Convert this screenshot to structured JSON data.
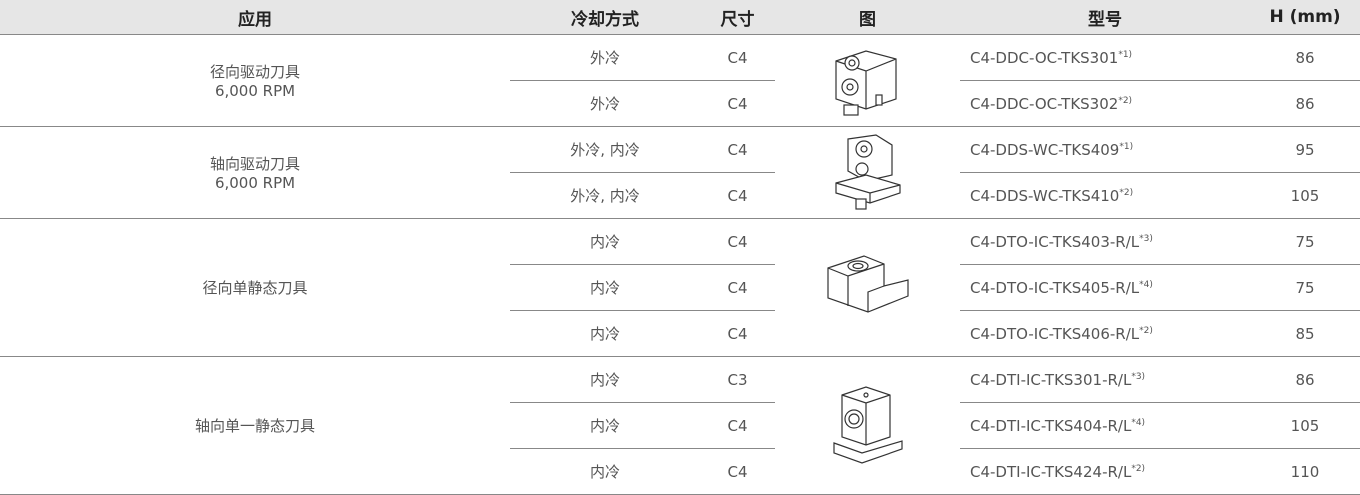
{
  "table": {
    "columns": [
      "应用",
      "冷却方式",
      "尺寸",
      "图",
      "型号",
      "H (mm)"
    ],
    "groups": [
      {
        "application": [
          "径向驱动刀具",
          "6,000 RPM"
        ],
        "rows": [
          {
            "cooling": "外冷",
            "size": "C4",
            "model": "C4-DDC-OC-TKS301",
            "note": "*1)",
            "h": 86
          },
          {
            "cooling": "外冷",
            "size": "C4",
            "model": "C4-DDC-OC-TKS302",
            "note": "*2)",
            "h": 86
          }
        ]
      },
      {
        "application": [
          "轴向驱动刀具",
          "6,000 RPM"
        ],
        "rows": [
          {
            "cooling": "外冷, 内冷",
            "size": "C4",
            "model": "C4-DDS-WC-TKS409",
            "note": "*1)",
            "h": 95
          },
          {
            "cooling": "外冷, 内冷",
            "size": "C4",
            "model": "C4-DDS-WC-TKS410",
            "note": "*2)",
            "h": 105
          }
        ]
      },
      {
        "application": [
          "径向单静态刀具"
        ],
        "rows": [
          {
            "cooling": "内冷",
            "size": "C4",
            "model": "C4-DTO-IC-TKS403-R/L",
            "note": "*3)",
            "h": 75
          },
          {
            "cooling": "内冷",
            "size": "C4",
            "model": "C4-DTO-IC-TKS405-R/L",
            "note": "*4)",
            "h": 75
          },
          {
            "cooling": "内冷",
            "size": "C4",
            "model": "C4-DTO-IC-TKS406-R/L",
            "note": "*2)",
            "h": 85
          }
        ]
      },
      {
        "application": [
          "轴向单一静态刀具"
        ],
        "rows": [
          {
            "cooling": "内冷",
            "size": "C3",
            "model": "C4-DTI-IC-TKS301-R/L",
            "note": "*3)",
            "h": 86
          },
          {
            "cooling": "内冷",
            "size": "C4",
            "model": "C4-DTI-IC-TKS404-R/L",
            "note": "*4)",
            "h": 105
          },
          {
            "cooling": "内冷",
            "size": "C4",
            "model": "C4-DTI-IC-TKS424-R/L",
            "note": "*2)",
            "h": 110
          }
        ]
      }
    ]
  }
}
